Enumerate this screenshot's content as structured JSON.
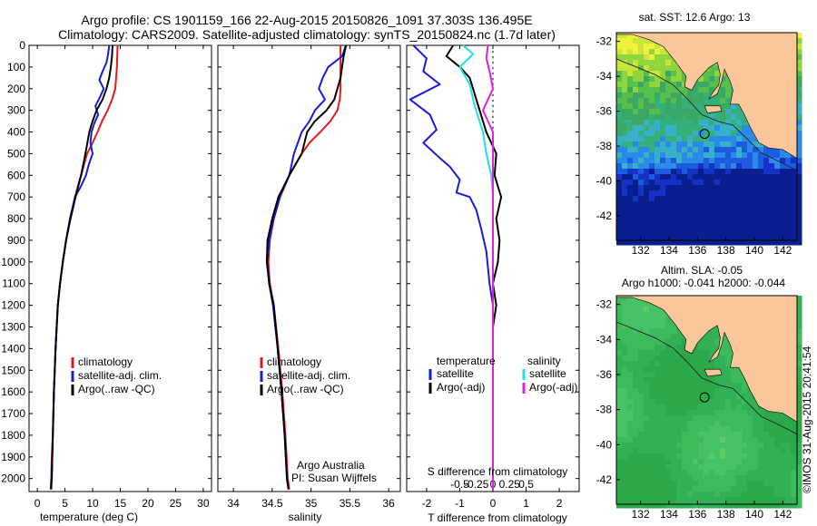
{
  "header": {
    "line1": "Argo profile: CS 1901159_166 22-Aug-2015 20150826_1091 37.303S 136.495E",
    "line2": "Climatology: CARS2009. Satellite-adjusted climatology: synTS_20150824.nc (1.7d later)"
  },
  "colors": {
    "climatology": "#e41a1c",
    "satellite": "#1a1adb",
    "argo": "#000000",
    "sat_salinity": "#22e0e8",
    "argo_salinity": "#e020e0",
    "land": "#f9c79a"
  },
  "depth_axis": {
    "ticks": [
      0,
      100,
      200,
      300,
      400,
      500,
      600,
      700,
      800,
      900,
      1000,
      1100,
      1200,
      1300,
      1400,
      1500,
      1600,
      1700,
      1800,
      1900,
      2000
    ],
    "ylim": [
      2060,
      0
    ]
  },
  "chart_data": [
    {
      "id": "temperature",
      "type": "line",
      "xlabel": "temperature (deg C)",
      "xlim": [
        -1.5,
        31.5
      ],
      "xticks": [
        0,
        5,
        10,
        15,
        20,
        25,
        30
      ],
      "legend": [
        "climatology",
        "satellite-adj. clim.",
        "Argo(..raw -QC)"
      ],
      "series": [
        {
          "name": "climatology",
          "color_key": "climatology",
          "x": [
            14.5,
            14.4,
            14.1,
            13.5,
            12.7,
            11.7,
            10.9,
            10.0,
            9.0,
            7.9,
            6.8,
            5.9,
            5.2,
            4.6,
            4.1,
            3.7,
            3.3,
            3.0,
            2.8,
            2.6,
            2.5,
            2.4
          ],
          "y": [
            0,
            100,
            200,
            250,
            300,
            350,
            400,
            450,
            500,
            600,
            700,
            800,
            900,
            1000,
            1100,
            1200,
            1400,
            1600,
            1800,
            1900,
            2000,
            2050
          ]
        },
        {
          "name": "satellite-adj. clim.",
          "color_key": "satellite",
          "x": [
            13.0,
            12.8,
            12.5,
            11.8,
            11.2,
            12.0,
            11.3,
            10.5,
            11.0,
            10.3,
            9.8,
            9.6,
            10.0,
            9.3,
            8.8,
            7.9,
            6.8,
            5.9,
            5.2,
            4.6,
            4.1,
            3.7,
            3.3,
            3.0,
            2.8,
            2.6,
            2.4
          ],
          "y": [
            0,
            40,
            80,
            120,
            160,
            200,
            240,
            280,
            320,
            360,
            400,
            450,
            500,
            550,
            600,
            650,
            700,
            800,
            900,
            1000,
            1100,
            1200,
            1400,
            1600,
            1800,
            2000,
            2050
          ]
        },
        {
          "name": "Argo(..raw -QC)",
          "color_key": "argo",
          "x": [
            13.6,
            13.5,
            13.3,
            13.0,
            12.5,
            11.8,
            10.7,
            10.0,
            9.4,
            8.7,
            7.9,
            6.9,
            6.0,
            5.2,
            4.6,
            4.1,
            3.7,
            3.3,
            3.0,
            2.8,
            2.6,
            2.5
          ],
          "y": [
            0,
            50,
            100,
            150,
            200,
            250,
            300,
            350,
            400,
            500,
            600,
            700,
            800,
            900,
            1000,
            1100,
            1200,
            1400,
            1600,
            1800,
            2000,
            2050
          ]
        }
      ]
    },
    {
      "id": "salinity",
      "type": "line",
      "xlabel": "salinity",
      "xlim": [
        33.8,
        36.15
      ],
      "xticks": [
        34,
        34.5,
        35,
        35.5,
        36
      ],
      "legend": [
        "climatology",
        "satellite-adj. clim.",
        "Argo(..raw -QC)"
      ],
      "annotation": [
        "Argo Australia",
        "PI: Susan Wijffels"
      ],
      "series": [
        {
          "name": "climatology",
          "color_key": "climatology",
          "x": [
            35.38,
            35.38,
            35.38,
            35.37,
            35.34,
            35.25,
            35.12,
            34.98,
            34.88,
            34.72,
            34.6,
            34.52,
            34.47,
            34.45,
            34.47,
            34.52,
            34.58,
            34.63,
            34.67,
            34.7,
            34.72
          ],
          "y": [
            0,
            100,
            200,
            250,
            300,
            350,
            400,
            450,
            500,
            600,
            700,
            800,
            900,
            1000,
            1100,
            1200,
            1400,
            1600,
            1800,
            2000,
            2050
          ]
        },
        {
          "name": "satellite-adj. clim.",
          "color_key": "satellite",
          "x": [
            35.45,
            35.4,
            35.22,
            35.15,
            35.1,
            35.18,
            35.05,
            34.98,
            34.88,
            34.78,
            34.72,
            34.6,
            34.52,
            34.46,
            34.44,
            34.46,
            34.51,
            34.57,
            34.62,
            34.66,
            34.69,
            34.71
          ],
          "y": [
            0,
            50,
            100,
            150,
            200,
            250,
            300,
            350,
            400,
            500,
            600,
            700,
            800,
            900,
            1000,
            1100,
            1200,
            1400,
            1600,
            1800,
            2000,
            2050
          ]
        },
        {
          "name": "Argo(..raw -QC)",
          "color_key": "argo",
          "x": [
            35.45,
            35.42,
            35.38,
            35.3,
            35.2,
            35.05,
            34.95,
            34.88,
            34.72,
            34.58,
            34.5,
            34.44,
            34.43,
            34.46,
            34.52,
            34.57,
            34.62,
            34.66,
            34.69,
            34.71
          ],
          "y": [
            0,
            50,
            150,
            250,
            300,
            350,
            400,
            500,
            600,
            700,
            800,
            900,
            1000,
            1100,
            1200,
            1400,
            1600,
            1800,
            2000,
            2050
          ]
        }
      ]
    },
    {
      "id": "difference",
      "type": "line",
      "xlabel": "T difference from climatology",
      "xlabel_top": "S difference from climatology",
      "xlim": [
        -2.6,
        2.6
      ],
      "xticks_T": [
        -2,
        -1,
        0,
        1,
        2
      ],
      "xticks_S": [
        -0.5,
        -0.25,
        0,
        0.25,
        0.5
      ],
      "legend": {
        "temperature": [
          "satellite",
          "Argo(-adj)"
        ],
        "salinity": [
          "satellite",
          "Argo(-adj)"
        ],
        "temperature_title": "temperature",
        "salinity_title": "salinity"
      },
      "series": [
        {
          "name": "temperature satellite",
          "color_key": "satellite",
          "x": [
            -2.4,
            -2.0,
            -2.1,
            -1.6,
            -2.5,
            -1.9,
            -1.7,
            -2.1,
            -1.6,
            -1.3,
            -1.0,
            -1.1,
            -0.7,
            -0.5,
            -0.35,
            -0.2,
            -0.1,
            0,
            0,
            0
          ],
          "y": [
            0,
            60,
            120,
            180,
            250,
            320,
            390,
            450,
            520,
            560,
            620,
            680,
            700,
            760,
            850,
            950,
            1100,
            1200,
            1600,
            2050
          ]
        },
        {
          "name": "temperature Argo(-adj)",
          "color_key": "argo",
          "x": [
            -1.2,
            -1.4,
            -1.0,
            -0.7,
            -0.6,
            -0.4,
            -0.2,
            0.1,
            0.05,
            0.25,
            0.1,
            0.2,
            0.15,
            0,
            0.1,
            0,
            0,
            0
          ],
          "y": [
            0,
            50,
            100,
            150,
            200,
            300,
            400,
            500,
            600,
            700,
            800,
            900,
            1000,
            1100,
            1200,
            1300,
            1600,
            2050
          ]
        },
        {
          "name": "salinity satellite",
          "color_key": "sat_salinity",
          "x": [
            -0.9,
            -0.6,
            -1.0,
            -0.7,
            -0.55,
            -0.3,
            -0.2,
            -0.05,
            0,
            0,
            0
          ],
          "y": [
            0,
            40,
            100,
            180,
            280,
            400,
            500,
            600,
            700,
            1200,
            2050
          ]
        },
        {
          "name": "salinity Argo(-adj)",
          "color_key": "argo_salinity",
          "x": [
            -0.15,
            -0.2,
            -0.1,
            0.0,
            -0.3,
            0.0,
            0.0,
            0.0,
            0.0
          ],
          "y": [
            0,
            60,
            120,
            200,
            300,
            400,
            600,
            1200,
            2050
          ]
        }
      ]
    },
    {
      "id": "sst_map",
      "type": "heatmap",
      "title": "sat. SST: 12.6  Argo: 13",
      "lon_ticks": [
        132,
        134,
        136,
        138,
        140,
        142
      ],
      "lat_ticks": [
        -32,
        -34,
        -36,
        -38,
        -40,
        -42
      ],
      "lon_range": [
        130.3,
        143
      ],
      "lat_range": [
        -43.4,
        -31.5
      ],
      "float_position": {
        "lon": 136.5,
        "lat": -37.3
      }
    },
    {
      "id": "sla_map",
      "type": "heatmap",
      "title_line1": "Altim. SLA: -0.05",
      "title_line2": "Argo h1000: -0.041 h2000: -0.044",
      "lon_ticks": [
        132,
        134,
        136,
        138,
        140,
        142
      ],
      "lat_ticks": [
        -32,
        -34,
        -36,
        -38,
        -40,
        -42
      ],
      "lon_range": [
        130.3,
        143
      ],
      "lat_range": [
        -43.4,
        -31.5
      ],
      "float_position": {
        "lon": 136.5,
        "lat": -37.3
      }
    }
  ],
  "footer_credit": "©IMOS 31-Aug-2015 20:41:54"
}
